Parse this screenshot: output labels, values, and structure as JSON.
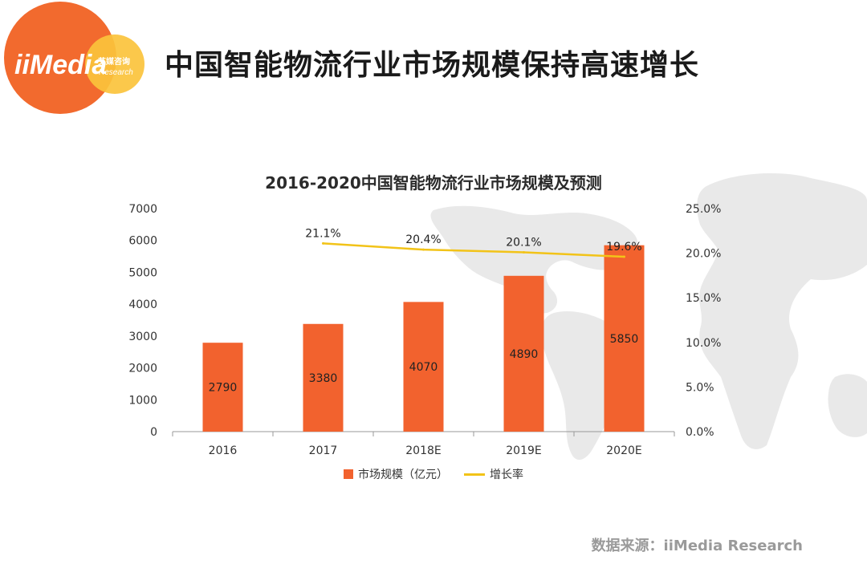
{
  "header": {
    "title": "中国智能物流行业市场规模保持高速增长",
    "logo_text": "iiMedia",
    "logo_sub_cn": "艾媒咨询",
    "logo_sub_en": "Research"
  },
  "source_note": "数据来源：iiMedia Research",
  "colors": {
    "bar": "#f2622e",
    "line": "#f2c318",
    "logo_orange": "#f26a2e",
    "logo_yellow": "#fbc33c"
  },
  "chart_data": {
    "type": "bar",
    "title": "2016-2020中国智能物流行业市场规模及预测",
    "categories": [
      "2016",
      "2017",
      "2018E",
      "2019E",
      "2020E"
    ],
    "series": [
      {
        "name": "市场规模（亿元）",
        "type": "bar",
        "axis": "left",
        "values": [
          2790,
          3380,
          4070,
          4890,
          5850
        ],
        "labels": [
          "2790",
          "3380",
          "4070",
          "4890",
          "5850"
        ]
      },
      {
        "name": "增长率",
        "type": "line",
        "axis": "right",
        "values": [
          null,
          21.1,
          20.4,
          20.1,
          19.6
        ],
        "labels": [
          "",
          "21.1%",
          "20.4%",
          "20.1%",
          "19.6%"
        ]
      }
    ],
    "ylim_left": [
      0,
      7000
    ],
    "yticks_left": [
      "0",
      "1000",
      "2000",
      "3000",
      "4000",
      "5000",
      "6000",
      "7000"
    ],
    "ylim_right": [
      0,
      25
    ],
    "yticks_right": [
      "0.0%",
      "5.0%",
      "10.0%",
      "15.0%",
      "20.0%",
      "25.0%"
    ],
    "grid": false,
    "legend_position": "bottom"
  }
}
